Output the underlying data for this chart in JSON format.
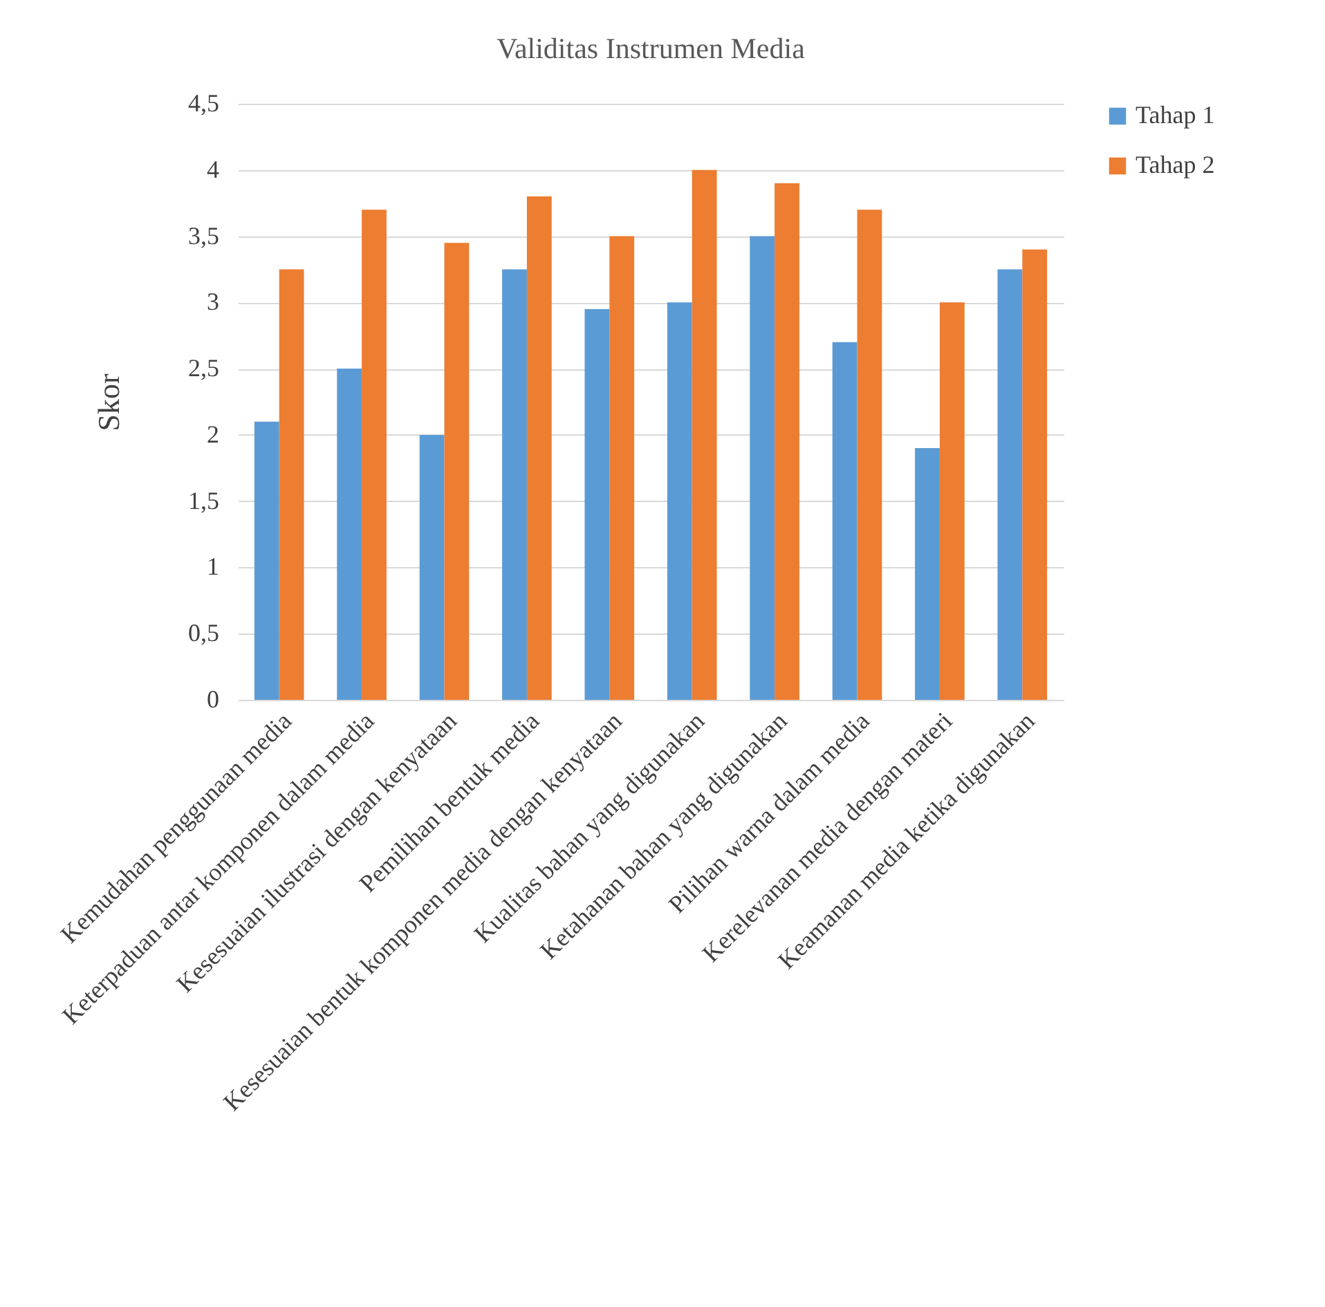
{
  "chart_data": {
    "type": "bar",
    "title": "Validitas Instrumen Media",
    "ylabel": "Skor",
    "categories": [
      "Kemudahan penggunaan media",
      "Keterpaduan antar komponen dalam media",
      "Kesesuaian ilustrasi dengan kenyataan",
      "Pemilihan bentuk media",
      "Kesesuaian bentuk komponen media dengan kenyataan",
      "Kualitas bahan yang digunakan",
      "Ketahanan bahan yang digunakan",
      "Pilihan warna dalam media",
      "Kerelevanan media dengan materi",
      "Keamanan media ketika digunakan"
    ],
    "series": [
      {
        "name": "Tahap 1",
        "color": "#5b9bd5",
        "values": [
          2.1,
          2.5,
          2.0,
          3.25,
          2.95,
          3.0,
          3.5,
          2.7,
          1.9,
          3.25
        ]
      },
      {
        "name": "Tahap 2",
        "color": "#ed7d31",
        "values": [
          3.25,
          3.7,
          3.45,
          3.8,
          3.5,
          4.0,
          3.9,
          3.7,
          3.0,
          3.4
        ]
      }
    ],
    "ylim": [
      0,
      4.5
    ],
    "yticks": [
      0,
      {
        "value": 0.5,
        "label": "0,5"
      },
      1,
      {
        "value": 1.5,
        "label": "1,5"
      },
      2,
      {
        "value": 2.5,
        "label": "2,5"
      },
      3,
      {
        "value": 3.5,
        "label": "3,5"
      },
      4,
      {
        "value": 4.5,
        "label": "4,5"
      }
    ],
    "grid": "y",
    "legend": "right"
  }
}
